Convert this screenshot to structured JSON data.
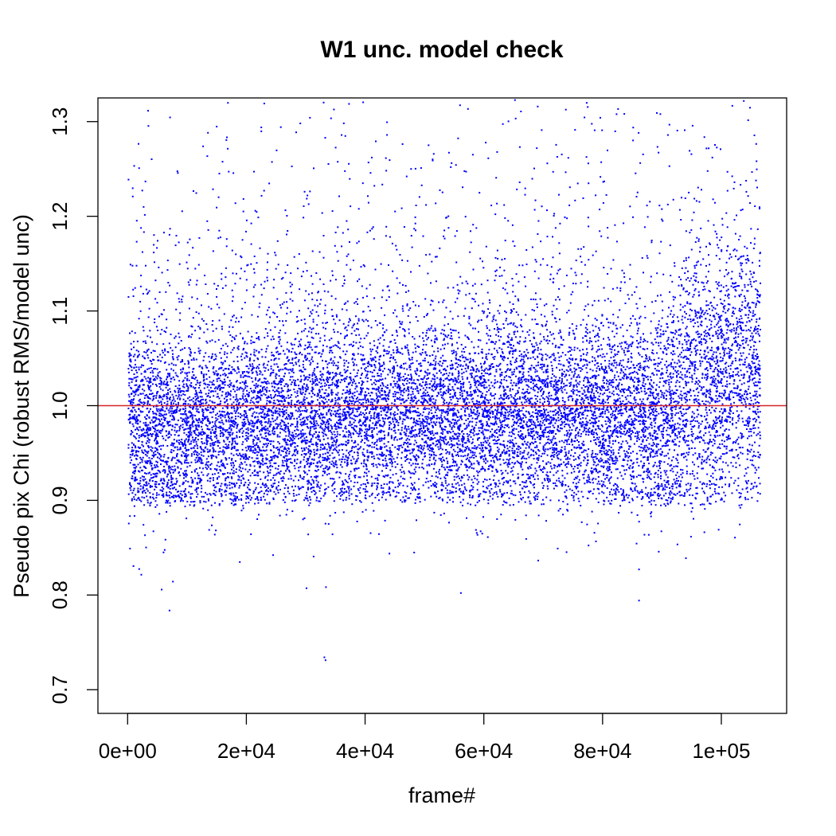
{
  "chart_data": {
    "type": "scatter",
    "title": "W1 unc. model check",
    "xlabel": "frame#",
    "ylabel": "Pseudo pix Chi (robust RMS/model unc)",
    "xlim": [
      -5000,
      111000
    ],
    "ylim": [
      0.675,
      1.325
    ],
    "x_ticks": [
      0,
      20000,
      40000,
      60000,
      80000,
      100000
    ],
    "x_tick_labels": [
      "0e+00",
      "2e+04",
      "4e+04",
      "6e+04",
      "8e+04",
      "1e+05"
    ],
    "y_ticks": [
      0.7,
      0.8,
      0.9,
      1.0,
      1.1,
      1.2,
      1.3
    ],
    "y_tick_labels": [
      "0.7",
      "0.8",
      "0.9",
      "1.0",
      "1.1",
      "1.2",
      "1.3"
    ],
    "reference_line": {
      "y": 1.0,
      "color": "#d62728"
    },
    "point_color": "#0000ff",
    "grid": false,
    "series": [
      {
        "x_range": [
          0,
          106500
        ],
        "profile": [
          {
            "x": 0,
            "median": 0.97,
            "spread": 0.055
          },
          {
            "x": 10000,
            "median": 0.975,
            "spread": 0.05
          },
          {
            "x": 20000,
            "median": 0.98,
            "spread": 0.05
          },
          {
            "x": 30000,
            "median": 0.985,
            "spread": 0.05
          },
          {
            "x": 40000,
            "median": 0.99,
            "spread": 0.05
          },
          {
            "x": 50000,
            "median": 0.99,
            "spread": 0.05
          },
          {
            "x": 60000,
            "median": 0.985,
            "spread": 0.05
          },
          {
            "x": 70000,
            "median": 0.99,
            "spread": 0.05
          },
          {
            "x": 80000,
            "median": 0.985,
            "spread": 0.05
          },
          {
            "x": 90000,
            "median": 0.98,
            "spread": 0.055
          },
          {
            "x": 95000,
            "median": 1.02,
            "spread": 0.07
          },
          {
            "x": 106500,
            "median": 1.03,
            "spread": 0.07
          }
        ],
        "floor": 0.9,
        "outliers": [
          {
            "x": 33000,
            "y": 0.735
          },
          {
            "x": 33200,
            "y": 0.732
          },
          {
            "x": 56000,
            "y": 0.803
          },
          {
            "x": 86000,
            "y": 0.795
          },
          {
            "x": 30000,
            "y": 0.808
          },
          {
            "x": 7500,
            "y": 0.815
          }
        ]
      }
    ]
  }
}
